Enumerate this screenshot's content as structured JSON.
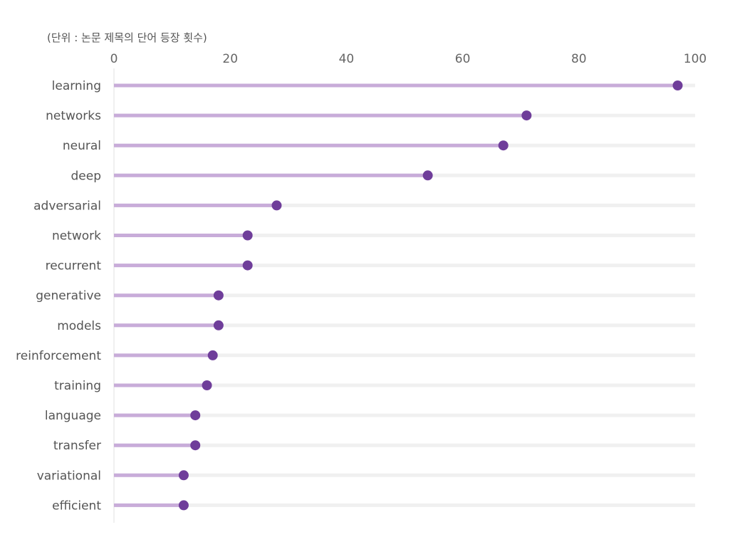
{
  "chart_data": {
    "type": "lollipop",
    "title": "(단위 : 논문 제목의 단어 등장 횟수)",
    "xlabel": "",
    "ylabel": "",
    "xlim": [
      0,
      100
    ],
    "x_ticks": [
      "0",
      "20",
      "40",
      "60",
      "80",
      "100"
    ],
    "categories": [
      "learning",
      "networks",
      "neural",
      "deep",
      "adversarial",
      "network",
      "recurrent",
      "generative",
      "models",
      "reinforcement",
      "training",
      "language",
      "transfer",
      "variational",
      "efficient"
    ],
    "values": [
      97,
      71,
      67,
      54,
      28,
      23,
      23,
      18,
      18,
      17,
      16,
      14,
      14,
      12,
      12
    ],
    "colors": {
      "stem": "#c8acd9",
      "dot": "#6f3d9a",
      "track": "#f0f0f0",
      "axis": "#e2e2e2"
    }
  }
}
